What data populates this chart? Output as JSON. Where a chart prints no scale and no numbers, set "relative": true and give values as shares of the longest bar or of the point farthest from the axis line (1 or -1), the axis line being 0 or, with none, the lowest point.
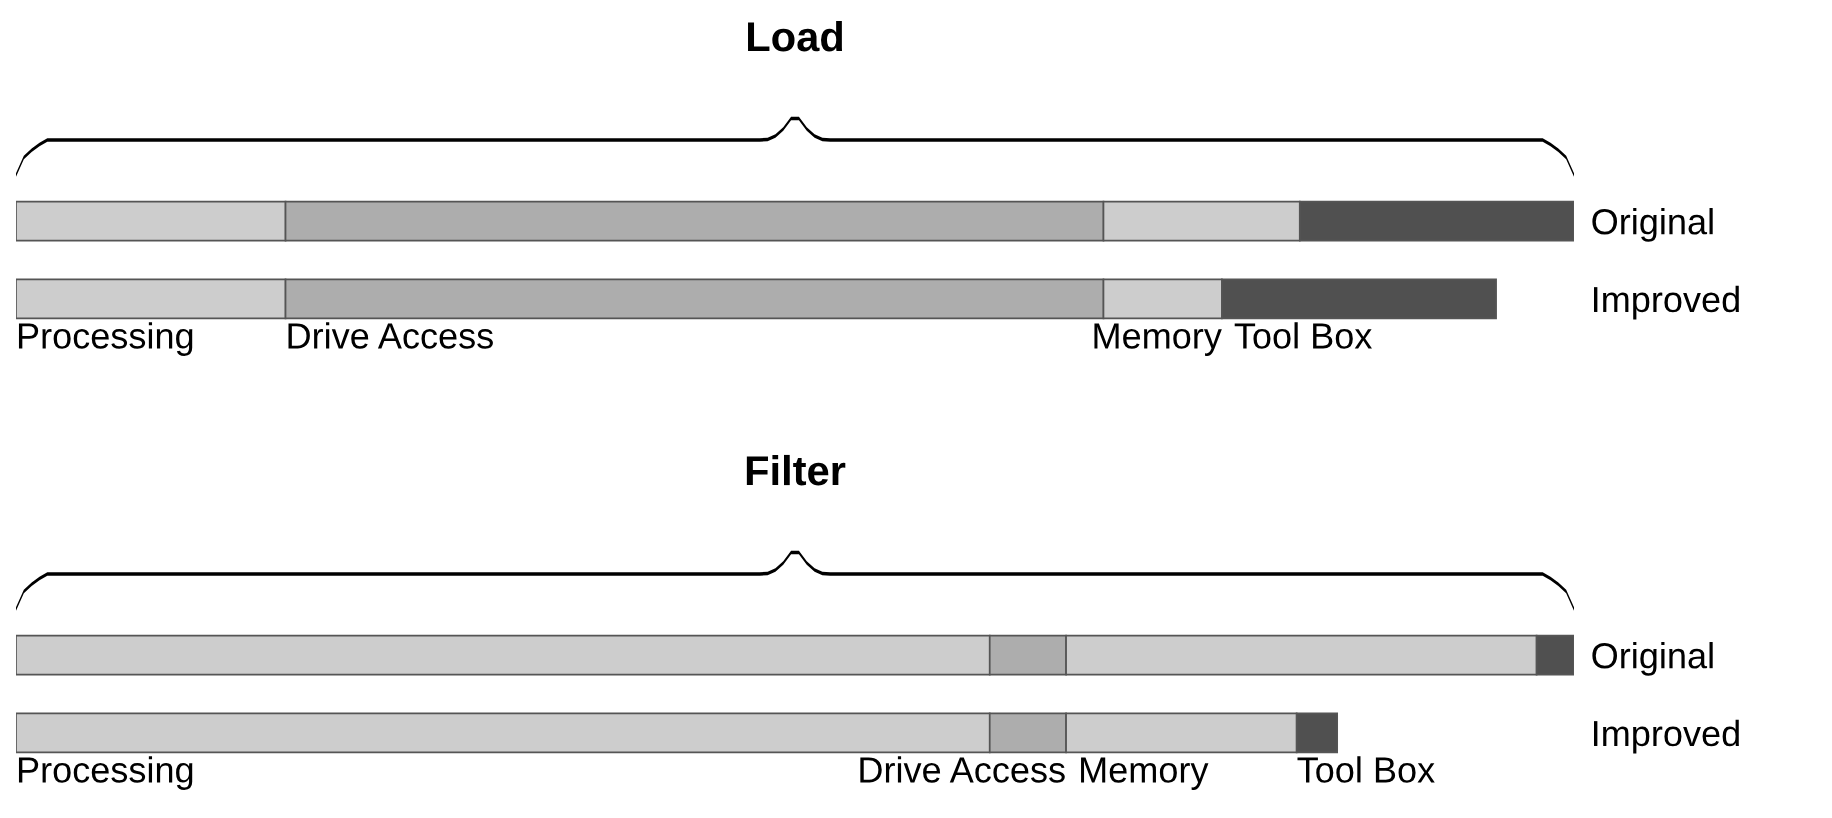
{
  "chart_data": [
    {
      "type": "bar",
      "title": "Load",
      "orientation": "horizontal",
      "stacked": true,
      "relative": true,
      "categories": [
        "Original",
        "Improved"
      ],
      "series": [
        {
          "name": "Processing",
          "color": "#cdcdcd",
          "values": [
            0.173,
            0.173
          ]
        },
        {
          "name": "Drive Access",
          "color": "#adadad",
          "values": [
            0.525,
            0.525
          ]
        },
        {
          "name": "Memory",
          "color": "#cdcdcd",
          "values": [
            0.126,
            0.076
          ]
        },
        {
          "name": "Tool Box",
          "color": "#505050",
          "values": [
            0.176,
            0.176
          ]
        }
      ]
    },
    {
      "type": "bar",
      "title": "Filter",
      "orientation": "horizontal",
      "stacked": true,
      "relative": true,
      "categories": [
        "Original",
        "Improved"
      ],
      "series": [
        {
          "name": "Processing",
          "color": "#cdcdcd",
          "values": [
            0.625,
            0.625
          ]
        },
        {
          "name": "Drive Access",
          "color": "#adadad",
          "values": [
            0.049,
            0.049
          ]
        },
        {
          "name": "Memory",
          "color": "#cdcdcd",
          "values": [
            0.302,
            0.148
          ]
        },
        {
          "name": "Tool Box",
          "color": "#505050",
          "values": [
            0.024,
            0.026
          ]
        }
      ]
    }
  ]
}
